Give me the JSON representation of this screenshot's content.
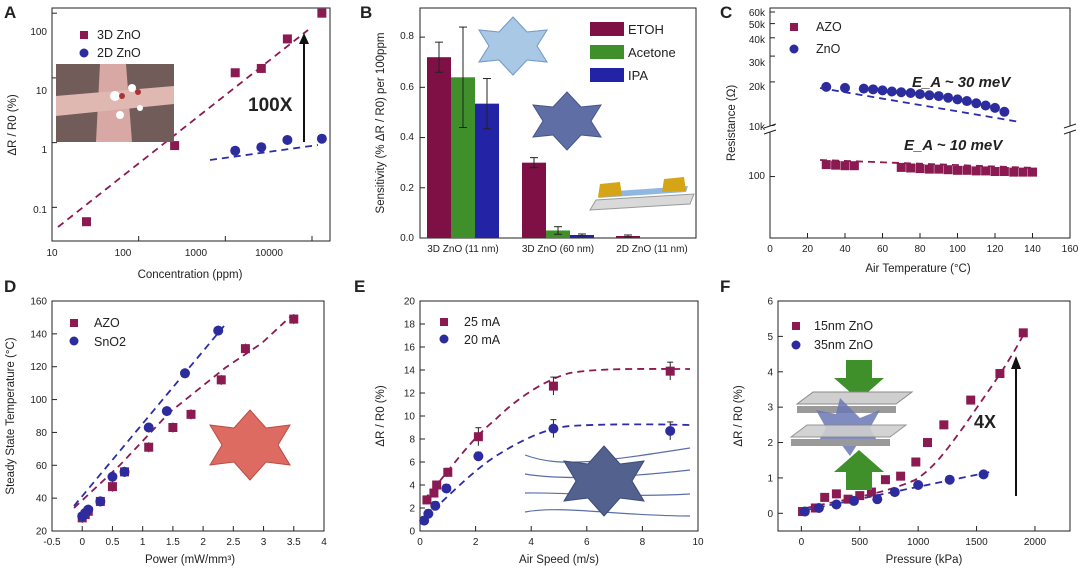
{
  "colors": {
    "purple": "#8b1a52",
    "blue": "#2c2c9e",
    "green": "#3f8f2a",
    "bar_purple": "#7e1046",
    "bar_blue": "#2323a6",
    "fit_purple": "#8b1a52",
    "fit_blue": "#2d2da8"
  },
  "chart_data": [
    {
      "id": "A",
      "type": "scatter",
      "panel_label": "A",
      "xscale": "log",
      "yscale": "log",
      "xlim": [
        10,
        20000
      ],
      "ylim": [
        0.03,
        120
      ],
      "xlabel": "Concentration (ppm)",
      "ylabel": "ΔR / R0 (%)",
      "xticks": [
        "10",
        "100",
        "1000",
        "10000"
      ],
      "yticks": [
        "0.1",
        "1",
        "10",
        "100"
      ],
      "series": [
        {
          "name": "3D ZnO",
          "marker": "square",
          "color": "#8b1a52",
          "x": [
            25,
            260,
            1300,
            2600,
            5200,
            13000
          ],
          "y": [
            0.06,
            0.9,
            12,
            14,
            40,
            100
          ]
        },
        {
          "name": "2D ZnO",
          "marker": "circle",
          "color": "#2c2c9e",
          "x": [
            1300,
            2600,
            5200,
            13000
          ],
          "y": [
            0.75,
            0.85,
            1.1,
            1.15
          ]
        }
      ],
      "annotations": [
        "100X"
      ]
    },
    {
      "id": "B",
      "type": "bar",
      "panel_label": "B",
      "ylim": [
        0,
        0.9
      ],
      "ylabel": "Sensitivity (% ΔR / R0) per 100ppm",
      "categories": [
        "3D ZnO (11 nm)",
        "3D ZnO (60 nm)",
        "2D ZnO (11 nm)"
      ],
      "yticks": [
        "0.0",
        "0.2",
        "0.4",
        "0.6",
        "0.8"
      ],
      "series": [
        {
          "name": "ETOH",
          "color": "#7e1046",
          "values": [
            0.72,
            0.3,
            0.008
          ],
          "errors": [
            0.06,
            0.02,
            0.004
          ]
        },
        {
          "name": "Acetone",
          "color": "#3f8f2a",
          "values": [
            0.64,
            0.03,
            0.0
          ],
          "errors": [
            0.2,
            0.015,
            0.0
          ]
        },
        {
          "name": "IPA",
          "color": "#2323a6",
          "values": [
            0.535,
            0.012,
            0.0
          ],
          "errors": [
            0.1,
            0.004,
            0.0
          ]
        }
      ]
    },
    {
      "id": "C",
      "type": "scatter",
      "panel_label": "C",
      "xlim": [
        0,
        160
      ],
      "yscale": "log-broken",
      "xlabel": "Air Temperature (°C)",
      "ylabel": "Resistance (Ω)",
      "xticks": [
        "0",
        "20",
        "40",
        "60",
        "80",
        "100",
        "120",
        "140",
        "160"
      ],
      "yticks_upper": [
        "10k",
        "20k",
        "30k",
        "40k",
        "50k",
        "60k"
      ],
      "yticks_lower": [
        "100"
      ],
      "series": [
        {
          "name": "AZO",
          "marker": "square",
          "color": "#8b1a52",
          "x": [
            30,
            35,
            40,
            45,
            70,
            75,
            80,
            85,
            90,
            95,
            100,
            105,
            110,
            115,
            120,
            125,
            130,
            135,
            140
          ],
          "y": [
            120,
            119,
            118,
            118,
            115,
            114,
            113,
            112,
            112,
            111,
            110,
            110,
            109,
            109,
            108,
            108,
            107,
            107,
            107
          ]
        },
        {
          "name": "ZnO",
          "marker": "circle",
          "color": "#2c2c9e",
          "x": [
            30,
            40,
            50,
            55,
            60,
            65,
            70,
            75,
            80,
            85,
            90,
            95,
            100,
            105,
            110,
            115,
            120,
            125
          ],
          "y": [
            18500,
            18200,
            18000,
            17800,
            17500,
            17200,
            17000,
            16800,
            16500,
            16200,
            16000,
            15600,
            15200,
            14800,
            14300,
            13800,
            13300,
            12500
          ]
        }
      ],
      "annotations": [
        "E_A ~ 30 meV",
        "E_A ~ 10 meV"
      ]
    },
    {
      "id": "D",
      "type": "scatter",
      "panel_label": "D",
      "xlim": [
        -0.5,
        4
      ],
      "ylim": [
        20,
        160
      ],
      "xlabel": "Power (mW/mm³)",
      "ylabel": "Steady State Temperature (°C)",
      "xticks": [
        "-0.5",
        "0",
        "0.5",
        "1",
        "1.5",
        "2",
        "2.5",
        "3",
        "3.5",
        "4"
      ],
      "yticks": [
        "20",
        "40",
        "60",
        "80",
        "100",
        "120",
        "140",
        "160"
      ],
      "series": [
        {
          "name": "AZO",
          "marker": "square",
          "color": "#8b1a52",
          "x": [
            0,
            0.05,
            0.1,
            0.3,
            0.5,
            0.7,
            1.1,
            1.5,
            1.8,
            2.3,
            2.7,
            3.5
          ],
          "y": [
            28,
            30,
            32,
            38,
            47,
            56,
            71,
            83,
            91,
            112,
            131,
            149
          ]
        },
        {
          "name": "SnO2",
          "marker": "circle",
          "color": "#2c2c9e",
          "x": [
            0,
            0.05,
            0.1,
            0.3,
            0.5,
            0.7,
            1.1,
            1.4,
            1.7,
            2.25
          ],
          "y": [
            29,
            31,
            33,
            38,
            53,
            56,
            83,
            93,
            116,
            142
          ]
        }
      ]
    },
    {
      "id": "E",
      "type": "scatter",
      "panel_label": "E",
      "xlim": [
        0,
        10
      ],
      "ylim": [
        0,
        20
      ],
      "xlabel": "Air Speed (m/s)",
      "ylabel": "ΔR / R0 (%)",
      "xticks": [
        "0",
        "2",
        "4",
        "6",
        "8",
        "10"
      ],
      "yticks": [
        "0",
        "2",
        "4",
        "6",
        "8",
        "10",
        "12",
        "14",
        "16",
        "18",
        "20"
      ],
      "series": [
        {
          "name": "25 mA",
          "marker": "square",
          "color": "#8b1a52",
          "x": [
            0.25,
            0.5,
            0.6,
            1.0,
            2.1,
            4.8,
            9.0
          ],
          "y": [
            2.7,
            3.3,
            4.0,
            5.1,
            8.2,
            12.6,
            13.9
          ]
        },
        {
          "name": "20 mA",
          "marker": "circle",
          "color": "#2c2c9e",
          "x": [
            0.15,
            0.3,
            0.55,
            0.95,
            2.1,
            4.8,
            9.0
          ],
          "y": [
            0.9,
            1.5,
            2.2,
            3.7,
            6.5,
            8.9,
            8.7
          ]
        }
      ]
    },
    {
      "id": "F",
      "type": "scatter",
      "panel_label": "F",
      "xlim": [
        -200,
        2300
      ],
      "ylim": [
        -0.5,
        6
      ],
      "xlabel": "Pressure (kPa)",
      "ylabel": "ΔR / R0 (%)",
      "xticks": [
        "0",
        "500",
        "1000",
        "1500",
        "2000"
      ],
      "yticks": [
        "0",
        "1",
        "2",
        "3",
        "4",
        "5",
        "6"
      ],
      "series": [
        {
          "name": "15nm ZnO",
          "marker": "square",
          "color": "#8b1a52",
          "x": [
            10,
            120,
            200,
            300,
            400,
            500,
            600,
            720,
            850,
            980,
            1080,
            1220,
            1450,
            1700,
            1900
          ],
          "y": [
            0.05,
            0.15,
            0.45,
            0.55,
            0.4,
            0.5,
            0.6,
            0.95,
            1.05,
            1.45,
            2.0,
            2.5,
            3.2,
            3.95,
            5.1
          ]
        },
        {
          "name": "35nm ZnO",
          "marker": "circle",
          "color": "#2c2c9e",
          "x": [
            30,
            150,
            300,
            450,
            650,
            800,
            1000,
            1270,
            1560
          ],
          "y": [
            0.05,
            0.15,
            0.25,
            0.35,
            0.4,
            0.6,
            0.8,
            0.95,
            1.1
          ]
        }
      ],
      "annotations": [
        "4X"
      ]
    }
  ]
}
